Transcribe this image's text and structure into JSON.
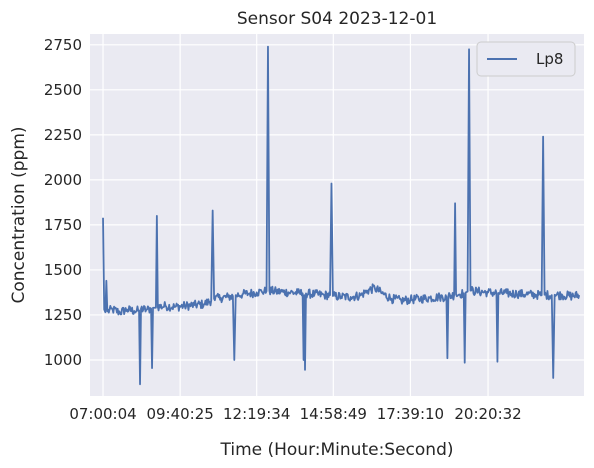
{
  "chart_data": {
    "type": "line",
    "title": "Sensor S04 2023-12-01",
    "xlabel": "Time (Hour:Minute:Second)",
    "ylabel": "Concentration (ppm)",
    "x_ticks": [
      "07:00:04",
      "09:40:25",
      "12:19:34",
      "14:58:49",
      "17:39:10",
      "20:20:32"
    ],
    "x_tick_seconds": [
      25204,
      34825,
      44374,
      53929,
      63550,
      73232
    ],
    "xlim": [
      "06:33:00",
      "23:40:00"
    ],
    "y_ticks": [
      1000,
      1250,
      1500,
      1750,
      2000,
      2250,
      2500,
      2750
    ],
    "ylim": [
      800,
      2810
    ],
    "grid": true,
    "legend_position": "top-right",
    "style": {
      "background": "#eaeaf2",
      "grid_color": "#ffffff",
      "line_color": "#4c72b0"
    },
    "series": [
      {
        "name": "Lp8",
        "points": [
          [
            "07:00:04",
            1790
          ],
          [
            "07:02:30",
            1280
          ],
          [
            "07:05:00",
            1265
          ],
          [
            "07:07:00",
            1440
          ],
          [
            "07:09:00",
            1270
          ],
          [
            "07:20:00",
            1280
          ],
          [
            "07:35:00",
            1265
          ],
          [
            "07:50:00",
            1280
          ],
          [
            "08:05:00",
            1272
          ],
          [
            "08:15:00",
            1275
          ],
          [
            "08:17:00",
            865
          ],
          [
            "08:19:00",
            1285
          ],
          [
            "08:30:00",
            1278
          ],
          [
            "08:40:00",
            1285
          ],
          [
            "08:42:00",
            955
          ],
          [
            "08:44:00",
            1290
          ],
          [
            "08:50:00",
            1290
          ],
          [
            "08:52:00",
            1800
          ],
          [
            "08:54:00",
            1295
          ],
          [
            "09:10:00",
            1300
          ],
          [
            "09:30:00",
            1295
          ],
          [
            "09:50:00",
            1300
          ],
          [
            "10:10:00",
            1305
          ],
          [
            "10:30:00",
            1310
          ],
          [
            "10:45:00",
            1330
          ],
          [
            "10:48:00",
            1830
          ],
          [
            "10:51:00",
            1340
          ],
          [
            "11:05:00",
            1345
          ],
          [
            "11:20:00",
            1350
          ],
          [
            "11:30:00",
            1355
          ],
          [
            "11:33:00",
            1000
          ],
          [
            "11:36:00",
            1360
          ],
          [
            "11:50:00",
            1365
          ],
          [
            "12:05:00",
            1370
          ],
          [
            "12:19:34",
            1375
          ],
          [
            "12:30:00",
            1380
          ],
          [
            "12:40:00",
            1382
          ],
          [
            "12:43:00",
            2740
          ],
          [
            "12:46:00",
            1385
          ],
          [
            "13:00:00",
            1380
          ],
          [
            "13:15:00",
            1378
          ],
          [
            "13:30:00",
            1375
          ],
          [
            "13:45:00",
            1372
          ],
          [
            "13:55:00",
            1370
          ],
          [
            "13:57:00",
            1000
          ],
          [
            "13:58:30",
            1360
          ],
          [
            "14:00:00",
            945
          ],
          [
            "14:02:00",
            1370
          ],
          [
            "14:20:00",
            1365
          ],
          [
            "14:40:00",
            1360
          ],
          [
            "14:52:00",
            1360
          ],
          [
            "14:55:00",
            1980
          ],
          [
            "14:58:00",
            1355
          ],
          [
            "15:15:00",
            1352
          ],
          [
            "15:35:00",
            1350
          ],
          [
            "15:55:00",
            1358
          ],
          [
            "16:10:00",
            1385
          ],
          [
            "16:25:00",
            1400
          ],
          [
            "16:40:00",
            1370
          ],
          [
            "17:00:00",
            1340
          ],
          [
            "17:20:00",
            1330
          ],
          [
            "17:39:10",
            1335
          ],
          [
            "18:00:00",
            1340
          ],
          [
            "18:20:00",
            1345
          ],
          [
            "18:40:00",
            1350
          ],
          [
            "18:54:00",
            1350
          ],
          [
            "18:56:00",
            1010
          ],
          [
            "18:58:00",
            1355
          ],
          [
            "19:10:00",
            1360
          ],
          [
            "19:12:00",
            1870
          ],
          [
            "19:14:00",
            1365
          ],
          [
            "19:30:00",
            1370
          ],
          [
            "19:32:00",
            985
          ],
          [
            "19:34:00",
            1375
          ],
          [
            "19:38:00",
            1380
          ],
          [
            "19:41:00",
            2725
          ],
          [
            "19:44:00",
            1385
          ],
          [
            "20:00:00",
            1380
          ],
          [
            "20:20:32",
            1375
          ],
          [
            "20:38:00",
            1372
          ],
          [
            "20:40:00",
            990
          ],
          [
            "20:42:00",
            1372
          ],
          [
            "21:00:00",
            1370
          ],
          [
            "21:20:00",
            1368
          ],
          [
            "21:40:00",
            1365
          ],
          [
            "22:00:00",
            1362
          ],
          [
            "22:12:00",
            1360
          ],
          [
            "22:15:00",
            2240
          ],
          [
            "22:18:00",
            1362
          ],
          [
            "22:33:00",
            1360
          ],
          [
            "22:36:00",
            900
          ],
          [
            "22:39:00",
            1362
          ],
          [
            "22:55:00",
            1360
          ],
          [
            "23:15:00",
            1355
          ],
          [
            "23:30:00",
            1360
          ]
        ]
      }
    ]
  }
}
